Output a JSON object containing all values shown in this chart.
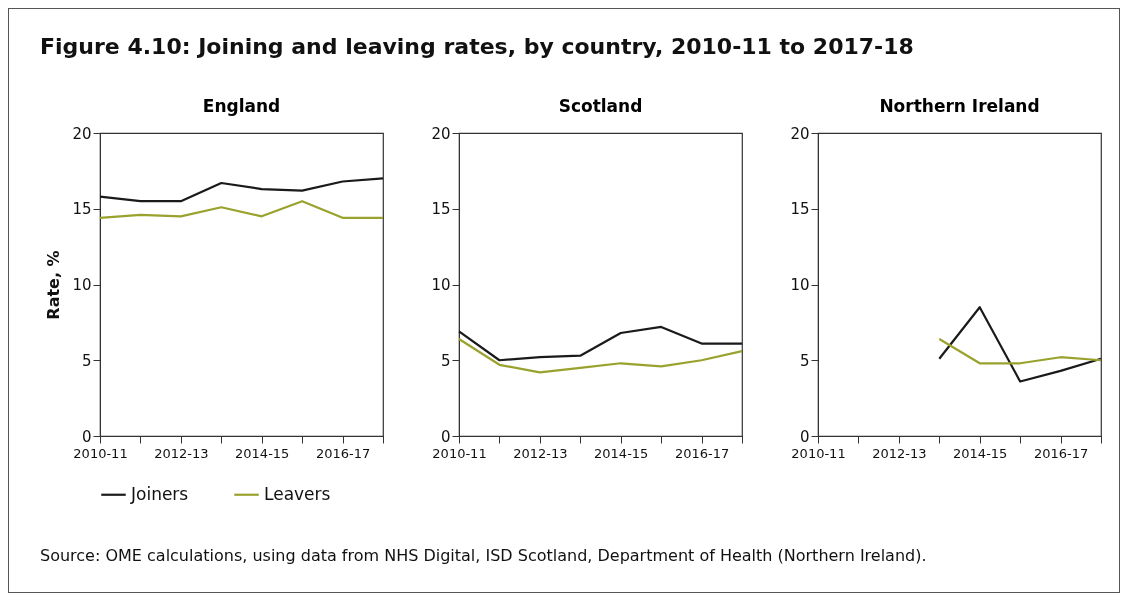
{
  "chart_data": [
    {
      "type": "line",
      "title": "England",
      "ylabel": "Rate, %",
      "categories": [
        "2010-11",
        null,
        "2012-13",
        null,
        "2014-15",
        null,
        "2016-17",
        null
      ],
      "ylim": [
        0,
        20
      ],
      "yticks": [
        0,
        5,
        10,
        15,
        20
      ],
      "grid": false,
      "legend": "bottom",
      "annotations": [
        "Figure 4.10: Joining and leaving rates, by country, 2010-11 to 2017-18",
        "Source: OME calculations, using data from NHS Digital, ISD Scotland, Department of Health (Northern Ireland)."
      ],
      "series": [
        {
          "name": "Joiners",
          "color": "#1a1a1a",
          "values": [
            15.8,
            15.5,
            15.5,
            16.7,
            16.3,
            16.2,
            16.8,
            17.0
          ]
        },
        {
          "name": "Leavers",
          "color": "#9aa22e",
          "values": [
            14.4,
            14.6,
            14.5,
            15.1,
            14.5,
            15.5,
            14.4,
            14.4
          ]
        }
      ]
    },
    {
      "type": "line",
      "title": "Scotland",
      "categories": [
        "2010-11",
        null,
        "2012-13",
        null,
        "2014-15",
        null,
        "2016-17",
        null
      ],
      "ylim": [
        0,
        20
      ],
      "yticks": [
        0,
        5,
        10,
        15,
        20
      ],
      "grid": false,
      "series": [
        {
          "name": "Joiners",
          "color": "#1a1a1a",
          "values": [
            6.9,
            5.0,
            5.2,
            5.3,
            6.8,
            7.2,
            6.1,
            6.1
          ]
        },
        {
          "name": "Leavers",
          "color": "#9aa22e",
          "values": [
            6.4,
            4.7,
            4.2,
            4.5,
            4.8,
            4.6,
            5.0,
            5.6
          ]
        }
      ]
    },
    {
      "type": "line",
      "title": "Northern Ireland",
      "categories": [
        "2010-11",
        null,
        "2012-13",
        null,
        "2014-15",
        null,
        "2016-17",
        null
      ],
      "ylim": [
        0,
        20
      ],
      "yticks": [
        0,
        5,
        10,
        15,
        20
      ],
      "grid": false,
      "series": [
        {
          "name": "Joiners",
          "color": "#1a1a1a",
          "values": [
            null,
            null,
            null,
            5.1,
            8.5,
            3.6,
            4.3,
            5.1
          ]
        },
        {
          "name": "Leavers",
          "color": "#9aa22e",
          "values": [
            null,
            null,
            null,
            6.4,
            4.8,
            4.8,
            5.2,
            5.0
          ]
        }
      ]
    }
  ]
}
